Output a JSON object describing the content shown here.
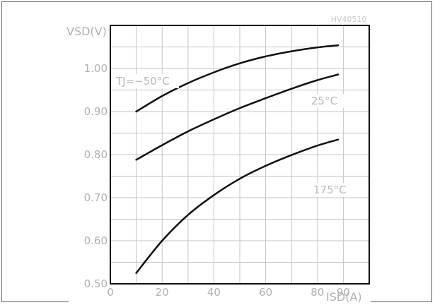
{
  "chart_data": {
    "type": "line",
    "title": "",
    "reference": "HV40510",
    "xlabel": "ISD(A)",
    "ylabel": "VSD(V)",
    "xlim": [
      0,
      100
    ],
    "ylim": [
      0.5,
      1.1
    ],
    "x_ticks": [
      "0",
      "20",
      "40",
      "60",
      "80",
      "90"
    ],
    "y_ticks": [
      "0.50",
      "0.60",
      "0.70",
      "0.80",
      "0.90",
      "1.00"
    ],
    "grid": true,
    "series": [
      {
        "name": "TJ=−50°C",
        "x": [
          10,
          20,
          30,
          40,
          50,
          60,
          70,
          80,
          88
        ],
        "y": [
          0.9,
          0.936,
          0.966,
          0.991,
          1.012,
          1.028,
          1.04,
          1.049,
          1.054
        ]
      },
      {
        "name": "25°C",
        "x": [
          10,
          20,
          30,
          40,
          50,
          60,
          70,
          80,
          88
        ],
        "y": [
          0.788,
          0.822,
          0.854,
          0.882,
          0.908,
          0.931,
          0.953,
          0.973,
          0.986
        ]
      },
      {
        "name": "175°C",
        "x": [
          10,
          20,
          30,
          40,
          50,
          60,
          70,
          80,
          88
        ],
        "y": [
          0.525,
          0.6,
          0.66,
          0.706,
          0.744,
          0.774,
          0.799,
          0.821,
          0.835
        ]
      }
    ]
  }
}
